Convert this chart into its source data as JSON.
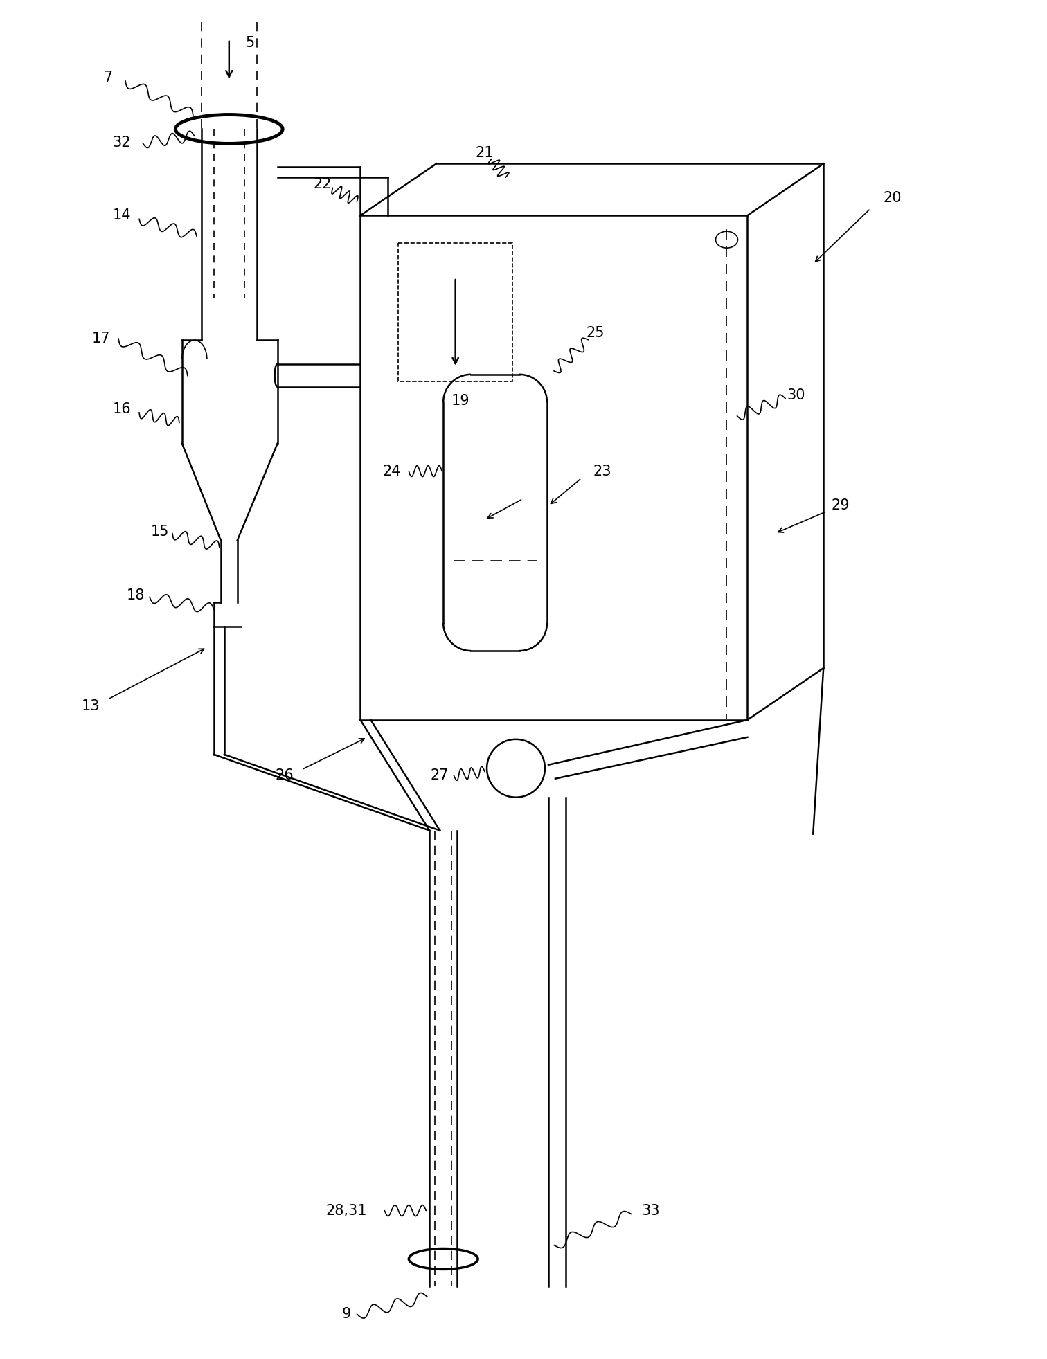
{
  "bg_color": "#ffffff",
  "line_color": "#000000",
  "figsize": [
    15.12,
    19.63
  ],
  "dpi": 100,
  "lw_main": 1.8,
  "lw_thin": 1.2,
  "lw_thick": 3.5,
  "fontsize": 15
}
